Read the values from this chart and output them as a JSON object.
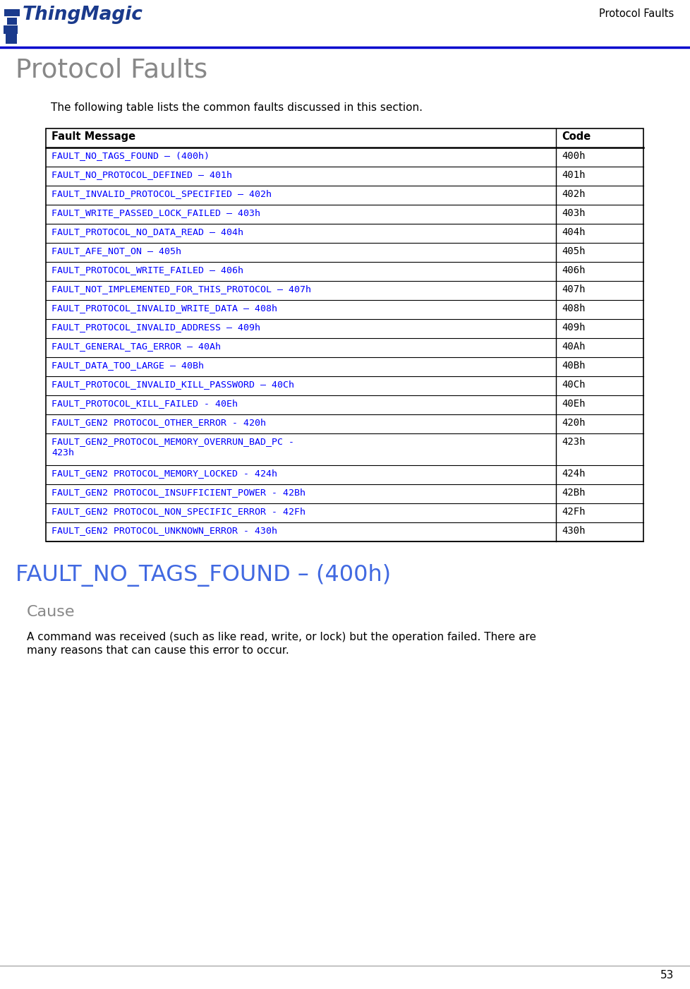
{
  "page_title": "Protocol Faults",
  "page_number": "53",
  "section_title": "Protocol Faults",
  "intro_text": "The following table lists the common faults discussed in this section.",
  "table_header": [
    "Fault Message",
    "Code"
  ],
  "table_rows": [
    [
      "FAULT_NO_TAGS_FOUND – (400h)",
      "400h"
    ],
    [
      "FAULT_NO_PROTOCOL_DEFINED – 401h",
      "401h"
    ],
    [
      "FAULT_INVALID_PROTOCOL_SPECIFIED – 402h",
      "402h"
    ],
    [
      "FAULT_WRITE_PASSED_LOCK_FAILED – 403h",
      "403h"
    ],
    [
      "FAULT_PROTOCOL_NO_DATA_READ – 404h",
      "404h"
    ],
    [
      "FAULT_AFE_NOT_ON – 405h",
      "405h"
    ],
    [
      "FAULT_PROTOCOL_WRITE_FAILED – 406h",
      "406h"
    ],
    [
      "FAULT_NOT_IMPLEMENTED_FOR_THIS_PROTOCOL – 407h",
      "407h"
    ],
    [
      "FAULT_PROTOCOL_INVALID_WRITE_DATA – 408h",
      "408h"
    ],
    [
      "FAULT_PROTOCOL_INVALID_ADDRESS – 409h",
      "409h"
    ],
    [
      "FAULT_GENERAL_TAG_ERROR – 40Ah",
      "40Ah"
    ],
    [
      "FAULT_DATA_TOO_LARGE – 40Bh",
      "40Bh"
    ],
    [
      "FAULT_PROTOCOL_INVALID_KILL_PASSWORD – 40Ch",
      "40Ch"
    ],
    [
      "FAULT_PROTOCOL_KILL_FAILED - 40Eh",
      "40Eh"
    ],
    [
      "FAULT_GEN2 PROTOCOL_OTHER_ERROR - 420h",
      "420h"
    ],
    [
      "FAULT_GEN2_PROTOCOL_MEMORY_OVERRUN_BAD_PC -|423h",
      "423h"
    ],
    [
      "FAULT_GEN2 PROTOCOL_MEMORY_LOCKED - 424h",
      "424h"
    ],
    [
      "FAULT_GEN2 PROTOCOL_INSUFFICIENT_POWER - 42Bh",
      "42Bh"
    ],
    [
      "FAULT_GEN2 PROTOCOL_NON_SPECIFIC_ERROR - 42Fh",
      "42Fh"
    ],
    [
      "FAULT_GEN2 PROTOCOL_UNKNOWN_ERROR - 430h",
      "430h"
    ]
  ],
  "fault_title": "FAULT_NO_TAGS_FOUND – (400h)",
  "cause_title": "Cause",
  "cause_line1": "A command was received (such as like read, write, or lock) but the operation failed. There are",
  "cause_line2": "many reasons that can cause this error to occur.",
  "blue_color": "#0000FF",
  "line_color": "#0000CD",
  "text_color": "#000000",
  "gray_title_color": "#888888",
  "table_border_color": "#000000",
  "logo_color": "#1a3a8c",
  "fault_title_color": "#4169E1",
  "cause_title_color": "#888888"
}
